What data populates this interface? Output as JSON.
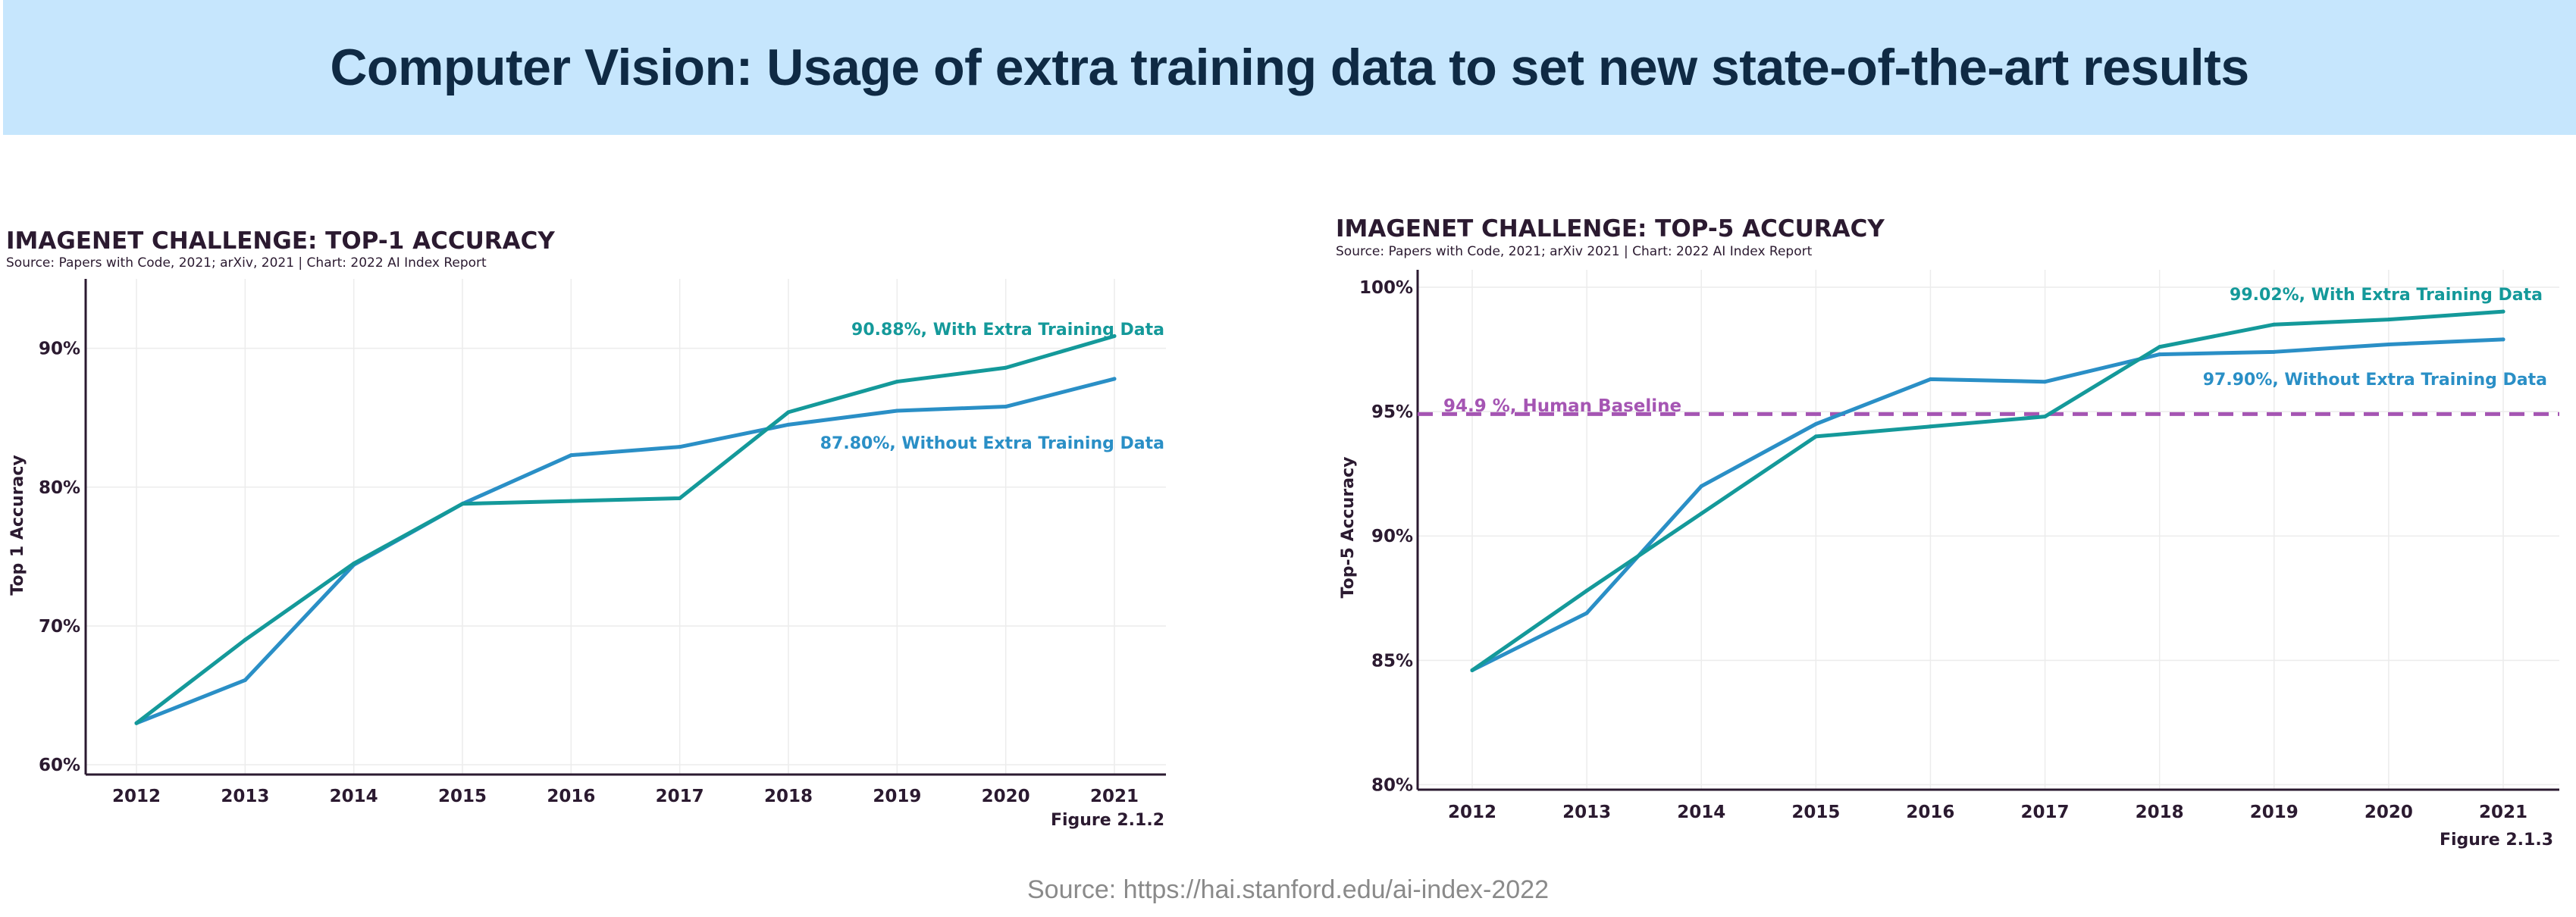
{
  "header": {
    "title": "Computer Vision: Usage of extra training data to set new state-of-the-art results"
  },
  "footer": {
    "source": "Source: https://hai.stanford.edu/ai-index-2022"
  },
  "colors": {
    "with_extra": "#14999a",
    "without_extra": "#2a8fc6",
    "human_baseline": "#a555b3",
    "axis": "#2b1a30",
    "grid": "#ececec",
    "banner": "#c6e6fd"
  },
  "chart_data": [
    {
      "type": "line",
      "title": "IMAGENET CHALLENGE: TOP-1 ACCURACY",
      "subtitle": "Source: Papers with Code, 2021; arXiv, 2021 | Chart: 2022 AI Index Report",
      "figure": "Figure 2.1.2",
      "xlabel": "",
      "ylabel": "Top 1 Accuracy",
      "ylim": [
        59.3,
        95
      ],
      "y_ticks": [
        60,
        70,
        80,
        90
      ],
      "y_tick_labels": [
        "60%",
        "70%",
        "80%",
        "90%"
      ],
      "x": [
        "2012",
        "2013",
        "2014",
        "2015",
        "2016",
        "2017",
        "2018",
        "2019",
        "2020",
        "2021"
      ],
      "grid": true,
      "series": [
        {
          "key": "with_extra",
          "values": [
            63.0,
            69.0,
            74.5,
            78.8,
            79.0,
            79.2,
            85.4,
            87.6,
            88.6,
            90.88
          ],
          "end_label": "90.88%, With Extra Training Data"
        },
        {
          "key": "without_extra",
          "values": [
            63.0,
            66.1,
            74.4,
            78.8,
            82.3,
            82.9,
            84.5,
            85.5,
            85.8,
            87.8
          ],
          "end_label": "87.80%, Without Extra Training Data"
        }
      ]
    },
    {
      "type": "line",
      "title": "IMAGENET CHALLENGE: TOP-5 ACCURACY",
      "subtitle": "Source: Papers with Code, 2021; arXiv 2021 | Chart: 2022 AI Index Report",
      "figure": "Figure 2.1.3",
      "xlabel": "",
      "ylabel": "Top-5 Accuracy",
      "ylim": [
        79.8,
        100.7
      ],
      "y_ticks": [
        80,
        85,
        90,
        95,
        100
      ],
      "y_tick_labels": [
        "80%",
        "85%",
        "90%",
        "95%",
        "100%"
      ],
      "x": [
        "2012",
        "2013",
        "2014",
        "2015",
        "2016",
        "2017",
        "2018",
        "2019",
        "2020",
        "2021"
      ],
      "grid": true,
      "reference_line": {
        "value": 94.9,
        "label": "94.9 %, Human Baseline"
      },
      "series": [
        {
          "key": "with_extra",
          "values": [
            84.6,
            87.8,
            90.9,
            94.0,
            94.4,
            94.8,
            97.6,
            98.5,
            98.7,
            99.02
          ],
          "end_label": "99.02%, With Extra Training Data"
        },
        {
          "key": "without_extra",
          "values": [
            84.6,
            86.9,
            92.0,
            94.5,
            96.3,
            96.2,
            97.3,
            97.4,
            97.7,
            97.9
          ],
          "end_label": "97.90%, Without Extra Training Data"
        }
      ]
    }
  ]
}
